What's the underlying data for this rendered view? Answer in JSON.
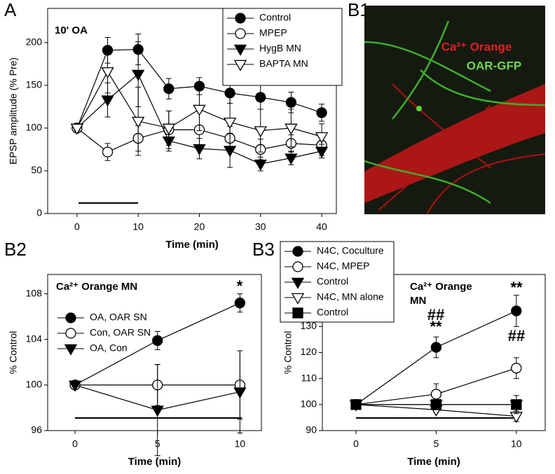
{
  "panel_labels": [
    "A",
    "B1",
    "B2",
    "B3"
  ],
  "image_panel": {
    "texts": [
      "Ca²⁺ Orange",
      "OAR-GFP"
    ]
  },
  "chart_data": [
    {
      "type": "line",
      "title": "10' OA",
      "xlabel": "Time (min)",
      "ylabel": "EPSP amplitude (% Pre)",
      "x": [
        0,
        5,
        10,
        15,
        20,
        25,
        30,
        35,
        40
      ],
      "xlim": [
        -4.8,
        42.4
      ],
      "xticks": [
        0,
        10,
        20,
        30,
        40
      ],
      "ylim": [
        0,
        240
      ],
      "yticks": [
        0,
        50,
        100,
        150,
        200
      ],
      "legend": "upper right",
      "series": [
        {
          "name": "Control",
          "color": "#000000",
          "marker": "circle",
          "filled": true,
          "values": [
            100,
            191,
            192,
            146,
            149,
            141,
            136,
            130,
            118
          ],
          "errors": [
            3,
            15,
            18,
            12,
            10,
            12,
            14,
            12,
            10
          ]
        },
        {
          "name": "MPEP",
          "color": "#000000",
          "marker": "circle",
          "filled": false,
          "values": [
            100,
            72,
            88,
            98,
            98,
            88,
            75,
            82,
            80
          ],
          "errors": [
            3,
            10,
            15,
            22,
            22,
            14,
            12,
            10,
            12
          ]
        },
        {
          "name": "HygB MN",
          "color": "#000000",
          "marker": "triangle",
          "filled": true,
          "values": [
            100,
            133,
            163,
            85,
            76,
            74,
            58,
            65,
            73
          ],
          "errors": [
            3,
            20,
            38,
            12,
            12,
            20,
            8,
            8,
            8
          ]
        },
        {
          "name": "BAPTA MN",
          "color": "#000000",
          "marker": "triangle",
          "filled": false,
          "values": [
            100,
            166,
            108,
            100,
            122,
            107,
            97,
            100,
            90
          ],
          "errors": [
            3,
            25,
            40,
            20,
            25,
            30,
            25,
            22,
            15
          ]
        }
      ]
    },
    {
      "type": "line",
      "title": [
        "Ca²⁺ Orange MN"
      ],
      "xlabel": "Time (min)",
      "ylabel": "% Control",
      "x": [
        0,
        5,
        10
      ],
      "xlim": [
        -1.66,
        11.3
      ],
      "xticks": [
        0,
        5,
        10
      ],
      "ylim": [
        96,
        109.7
      ],
      "yticks": [
        96,
        100,
        104,
        108
      ],
      "legend": "upper left",
      "annotations": [
        "*"
      ],
      "series": [
        {
          "name": "OA, OAR SN",
          "color": "#000000",
          "marker": "circle",
          "filled": true,
          "values": [
            100,
            103.9,
            107.2
          ],
          "errors": [
            0,
            0.8,
            0.8
          ]
        },
        {
          "name": "Con, OAR SN",
          "color": "#000000",
          "marker": "circle",
          "filled": false,
          "values": [
            100,
            100,
            100
          ],
          "errors": [
            0,
            1.8,
            3
          ]
        },
        {
          "name": "OA, Con",
          "color": "#000000",
          "marker": "triangle",
          "filled": true,
          "values": [
            100,
            97.8,
            99.4
          ],
          "errors": [
            0,
            4,
            3.6
          ]
        }
      ]
    },
    {
      "type": "line",
      "title": [
        "Ca²⁺ Orange",
        "MN"
      ],
      "xlabel": "Time (min)",
      "ylabel": "% Control",
      "x": [
        0,
        5,
        10
      ],
      "xlim": [
        -2.1,
        11.8
      ],
      "xticks": [
        0,
        5,
        10
      ],
      "ylim": [
        90,
        150
      ],
      "yticks": [
        90,
        100,
        110,
        120,
        130
      ],
      "legend": "upper left",
      "annotations": [
        "**",
        "##",
        "**",
        "##"
      ],
      "series": [
        {
          "name": "N4C, Coculture",
          "color": "#000000",
          "marker": "circle",
          "filled": true,
          "values": [
            100,
            122,
            136
          ],
          "errors": [
            0,
            4,
            6
          ]
        },
        {
          "name": "N4C, MPEP",
          "color": "#000000",
          "marker": "circle",
          "filled": false,
          "values": [
            100,
            104,
            114
          ],
          "errors": [
            0,
            4,
            4
          ]
        },
        {
          "name": "Control",
          "color": "#000000",
          "marker": "triangle",
          "filled": true,
          "values": [
            100,
            100,
            100
          ],
          "errors": [
            0,
            1,
            1
          ]
        },
        {
          "name": "N4C, MN alone",
          "color": "#000000",
          "marker": "triangle",
          "filled": false,
          "values": [
            100,
            98,
            95.5
          ],
          "errors": [
            0,
            1,
            2
          ]
        },
        {
          "name": "Control",
          "color": "#000000",
          "marker": "square",
          "filled": true,
          "values": [
            100,
            100,
            100
          ],
          "errors": [
            0,
            2,
            3.5
          ]
        }
      ]
    }
  ]
}
